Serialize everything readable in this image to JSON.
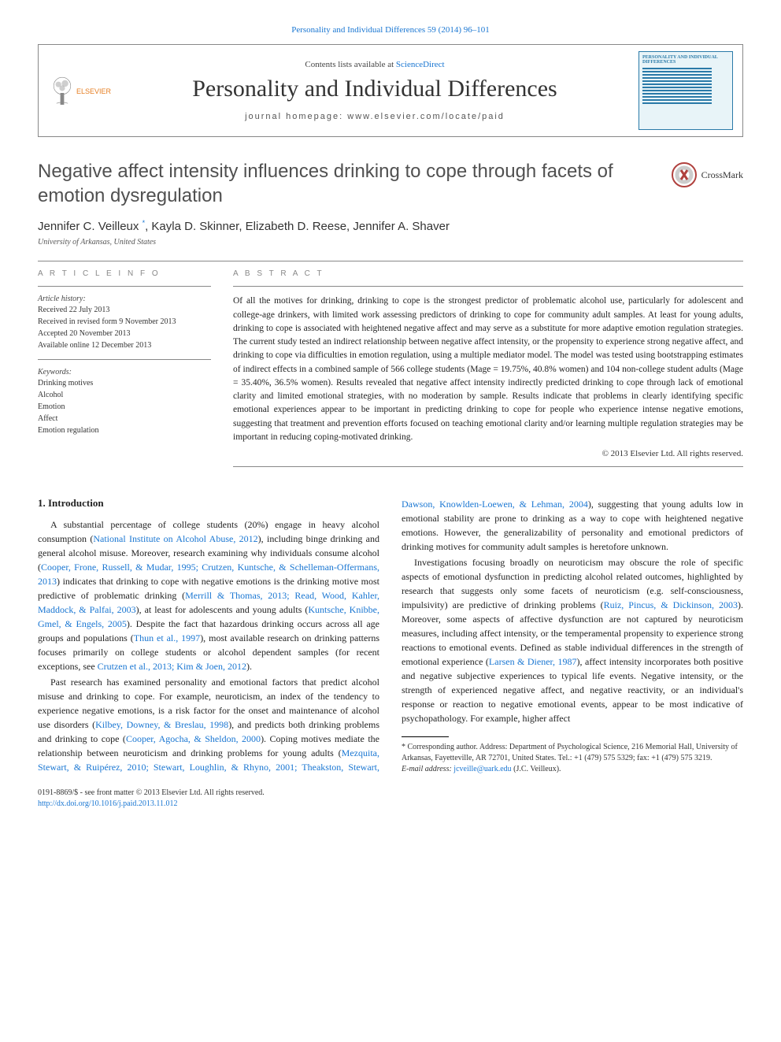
{
  "top_citation": "Personality and Individual Differences 59 (2014) 96–101",
  "masthead": {
    "contents_prefix": "Contents lists available at ",
    "contents_link": "ScienceDirect",
    "journal_title": "Personality and Individual Differences",
    "homepage_prefix": "journal homepage: ",
    "homepage_url": "www.elsevier.com/locate/paid",
    "publisher_label": "ELSEVIER",
    "cover_title": "PERSONALITY AND INDIVIDUAL DIFFERENCES"
  },
  "crossmark": "CrossMark",
  "article": {
    "title": "Negative affect intensity influences drinking to cope through facets of emotion dysregulation",
    "authors_html": "Jennifer C. Veilleux <span class='corr sup'>*</span>, Kayla D. Skinner, Elizabeth D. Reese, Jennifer A. Shaver",
    "affiliation": "University of Arkansas, United States"
  },
  "info": {
    "heading": "A R T I C L E   I N F O",
    "history_label": "Article history:",
    "received": "Received 22 July 2013",
    "revised": "Received in revised form 9 November 2013",
    "accepted": "Accepted 20 November 2013",
    "online": "Available online 12 December 2013",
    "keywords_label": "Keywords:",
    "kw1": "Drinking motives",
    "kw2": "Alcohol",
    "kw3": "Emotion",
    "kw4": "Affect",
    "kw5": "Emotion regulation"
  },
  "abstract": {
    "heading": "A B S T R A C T",
    "text": "Of all the motives for drinking, drinking to cope is the strongest predictor of problematic alcohol use, particularly for adolescent and college-age drinkers, with limited work assessing predictors of drinking to cope for community adult samples. At least for young adults, drinking to cope is associated with heightened negative affect and may serve as a substitute for more adaptive emotion regulation strategies. The current study tested an indirect relationship between negative affect intensity, or the propensity to experience strong negative affect, and drinking to cope via difficulties in emotion regulation, using a multiple mediator model. The model was tested using bootstrapping estimates of indirect effects in a combined sample of 566 college students (Mage = 19.75%, 40.8% women) and 104 non-college student adults (Mage = 35.40%, 36.5% women). Results revealed that negative affect intensity indirectly predicted drinking to cope through lack of emotional clarity and limited emotional strategies, with no moderation by sample. Results indicate that problems in clearly identifying specific emotional experiences appear to be important in predicting drinking to cope for people who experience intense negative emotions, suggesting that treatment and prevention efforts focused on teaching emotional clarity and/or learning multiple regulation strategies may be important in reducing coping-motivated drinking.",
    "copyright": "© 2013 Elsevier Ltd. All rights reserved."
  },
  "body": {
    "section1": "1. Introduction",
    "p1_a": "A substantial percentage of college students (20%) engage in heavy alcohol consumption (",
    "p1_c1": "National Institute on Alcohol Abuse, 2012",
    "p1_b": "), including binge drinking and general alcohol misuse. Moreover, research examining why individuals consume alcohol (",
    "p1_c2": "Cooper, Frone, Russell, & Mudar, 1995; Crutzen, Kuntsche, & Schelleman-Offermans, 2013",
    "p1_c": ") indicates that drinking to cope with negative emotions is the drinking motive most predictive of problematic drinking (",
    "p1_c3": "Merrill & Thomas, 2013; Read, Wood, Kahler, Maddock, & Palfai, 2003",
    "p1_d": "), at least for adolescents and young adults (",
    "p1_c4": "Kuntsche, Knibbe, Gmel, & Engels, 2005",
    "p1_e": "). Despite the fact that hazardous drinking occurs across all age groups and populations (",
    "p1_c5": "Thun et al., 1997",
    "p1_f": "), most available research on drinking patterns focuses primarily on college students or alcohol dependent samples (for recent exceptions, see ",
    "p1_c6": "Crutzen et al., 2013; Kim & Joen, 2012",
    "p1_g": ").",
    "p2_a": "Past research has examined personality and emotional factors that predict alcohol misuse and drinking to cope. For example, neuroticism, an index of the tendency to experience negative emotions, is a risk factor for the onset and maintenance of alcohol use disorders (",
    "p2_c1": "Kilbey, Downey, & Breslau, 1998",
    "p2_b": "), and predicts both drinking problems and drinking to cope (",
    "p2_c2": "Cooper, Agocha, & Sheldon, 2000",
    "p2_c": "). Coping motives mediate the relationship between neuroticism and drinking problems for young adults (",
    "p2_c3": "Mezquita, Stewart, & Ruipérez, 2010; Stewart, Loughlin, & Rhyno, 2001; Theakston, Stewart, Dawson, Knowlden-Loewen, & Lehman, 2004",
    "p2_d": "), suggesting that young adults low in emotional stability are prone to drinking as a way to cope with heightened negative emotions. However, the generalizability of personality and emotional predictors of drinking motives for community adult samples is heretofore unknown.",
    "p3_a": "Investigations focusing broadly on neuroticism may obscure the role of specific aspects of emotional dysfunction in predicting alcohol related outcomes, highlighted by research that suggests only some facets of neuroticism (e.g. self-consciousness, impulsivity) are predictive of drinking problems (",
    "p3_c1": "Ruiz, Pincus, & Dickinson, 2003",
    "p3_b": "). Moreover, some aspects of affective dysfunction are not captured by neuroticism measures, including affect intensity, or the temperamental propensity to experience strong reactions to emotional events. Defined as stable individual differences in the strength of emotional experience (",
    "p3_c2": "Larsen & Diener, 1987",
    "p3_c": "), affect intensity incorporates both positive and negative subjective experiences to typical life events. Negative intensity, or the strength of experienced negative affect, and negative reactivity, or an individual's response or reaction to negative emotional events, appear to be most indicative of psychopathology. For example, higher affect"
  },
  "footnote": {
    "corr_label": "* Corresponding author. Address: Department of Psychological Science, 216 Memorial Hall, University of Arkansas, Fayetteville, AR 72701, United States. Tel.: +1 (479) 575 5329; fax: +1 (479) 575 3219.",
    "email_label": "E-mail address: ",
    "email": "jcveille@uark.edu",
    "email_suffix": " (J.C. Veilleux)."
  },
  "bottom": {
    "issn": "0191-8869/$ - see front matter © 2013 Elsevier Ltd. All rights reserved.",
    "doi": "http://dx.doi.org/10.1016/j.paid.2013.11.012"
  },
  "colors": {
    "link": "#1976d2",
    "rule": "#888888",
    "text": "#1a1a1a",
    "elsevier_orange": "#e67e22",
    "cover_bg": "#e8f4f8",
    "cover_border": "#2a7aa8"
  }
}
